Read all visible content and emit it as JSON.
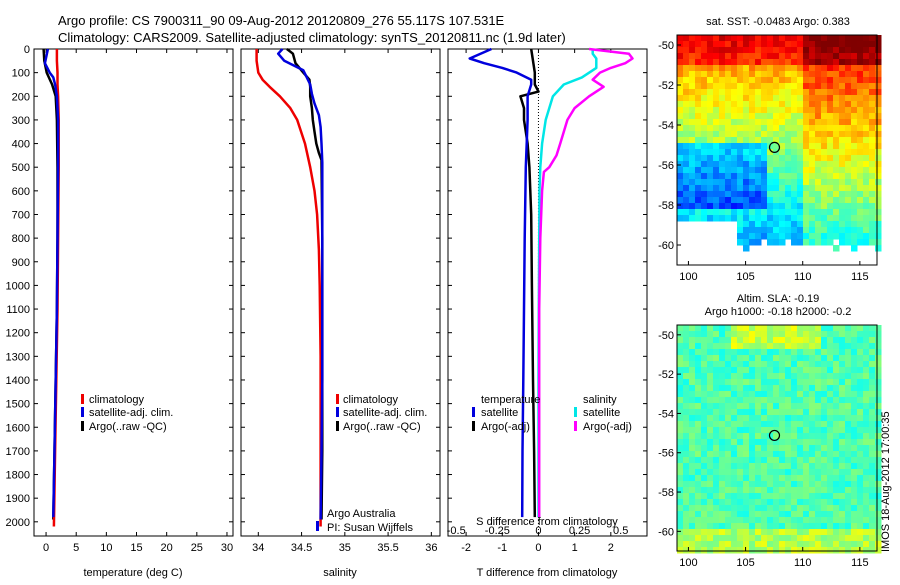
{
  "header": {
    "line1": "Argo profile: CS 7900311_90 09-Aug-2012 20120809_276 55.117S 107.531E",
    "line2": "Climatology: CARS2009. Satellite-adjusted climatology: synTS_20120811.nc (1.9d later)"
  },
  "colors": {
    "climatology": "#ee0000",
    "satellite": "#0000dd",
    "argo": "#000000",
    "satellite_salinity": "#00e6e6",
    "argo_salinity": "#ff00ff"
  },
  "depth_ticks": [
    "0",
    "100",
    "200",
    "300",
    "400",
    "500",
    "600",
    "700",
    "800",
    "900",
    "1000",
    "1100",
    "1200",
    "1300",
    "1400",
    "1500",
    "1600",
    "1700",
    "1800",
    "1900",
    "2000"
  ],
  "chart_data": [
    {
      "id": "temperature",
      "type": "line",
      "xlabel": "temperature (deg C)",
      "ylabel": "",
      "xlim": [
        -2,
        31
      ],
      "ylim": [
        2060,
        0
      ],
      "xticks": [
        "0",
        "5",
        "10",
        "15",
        "20",
        "25",
        "30"
      ],
      "xtick_values": [
        0,
        5,
        10,
        15,
        20,
        25,
        30
      ],
      "legend": [
        "climatology",
        "satellite-adj. clim.",
        "Argo(..raw -QC)"
      ],
      "legend_position": "lower-middle",
      "series": [
        {
          "name": "climatology",
          "depth": [
            0,
            50,
            100,
            150,
            200,
            300,
            500,
            800,
            1100,
            1400,
            1700,
            2020
          ],
          "values": [
            1.8,
            1.8,
            1.9,
            1.9,
            2.0,
            2.1,
            2.1,
            2.0,
            1.9,
            1.7,
            1.5,
            1.3
          ]
        },
        {
          "name": "satellite-adj. clim.",
          "depth": [
            0,
            60,
            100,
            120,
            150,
            200,
            300,
            500,
            800,
            1100,
            1400,
            1700,
            1980
          ],
          "values": [
            0.3,
            -0.2,
            0.6,
            1.2,
            1.5,
            1.8,
            2.0,
            2.0,
            1.9,
            1.8,
            1.6,
            1.4,
            1.2
          ]
        },
        {
          "name": "Argo(..raw -QC)",
          "depth": [
            0,
            50,
            100,
            150,
            200,
            300,
            500,
            800,
            1100,
            1400,
            1700,
            1990
          ],
          "values": [
            -0.4,
            -0.3,
            0.1,
            1.0,
            1.6,
            1.8,
            1.9,
            1.9,
            1.8,
            1.6,
            1.4,
            1.2
          ]
        }
      ]
    },
    {
      "id": "salinity",
      "type": "line",
      "xlabel": "salinity",
      "ylabel": "",
      "xlim": [
        33.8,
        36.1
      ],
      "ylim": [
        2060,
        0
      ],
      "xticks": [
        "34",
        "34.5",
        "35",
        "35.5",
        "36"
      ],
      "xtick_values": [
        34,
        34.5,
        35,
        35.5,
        36
      ],
      "legend": [
        "climatology",
        "satellite-adj. clim.",
        "Argo(..raw -QC)"
      ],
      "legend_position": "lower-right",
      "annotation": [
        "Argo Australia",
        "PI: Susan Wijffels"
      ],
      "series": [
        {
          "name": "climatology",
          "depth": [
            0,
            50,
            100,
            130,
            160,
            200,
            250,
            300,
            400,
            500,
            600,
            700,
            850,
            1000,
            1300,
            1600,
            2020
          ],
          "values": [
            33.98,
            33.98,
            34.0,
            34.05,
            34.13,
            34.25,
            34.37,
            34.45,
            34.54,
            34.6,
            34.65,
            34.68,
            34.7,
            34.71,
            34.72,
            34.72,
            34.72
          ]
        },
        {
          "name": "satellite-adj. clim.",
          "depth": [
            0,
            20,
            50,
            90,
            120,
            150,
            190,
            230,
            280,
            330,
            400,
            480,
            550,
            800,
            1100,
            1400,
            1700,
            1990
          ],
          "values": [
            34.28,
            34.23,
            34.3,
            34.52,
            34.56,
            34.6,
            34.62,
            34.65,
            34.7,
            34.72,
            34.73,
            34.74,
            34.74,
            34.74,
            34.74,
            34.74,
            34.73,
            34.72
          ]
        },
        {
          "name": "Argo(..raw -QC)",
          "depth": [
            0,
            20,
            60,
            100,
            130,
            160,
            200,
            250,
            300,
            350,
            400,
            440,
            470,
            800,
            1100,
            1400,
            1700,
            1990
          ],
          "values": [
            34.33,
            34.4,
            34.43,
            34.52,
            34.59,
            34.6,
            34.6,
            34.62,
            34.63,
            34.65,
            34.67,
            34.7,
            34.73,
            34.74,
            34.74,
            34.74,
            34.74,
            34.73
          ]
        }
      ]
    },
    {
      "id": "difference",
      "type": "line",
      "xlabel": "T difference from climatology",
      "xlabel_top": "S difference from climatology",
      "ylabel": "",
      "xlim": [
        -2.5,
        3.0
      ],
      "ylim": [
        2060,
        0
      ],
      "xticks": [
        "-2",
        "-1",
        "0",
        "1",
        "2"
      ],
      "xtick_values": [
        -2,
        -1,
        0,
        1,
        2
      ],
      "xticks_top": [
        "-0.5",
        "-0.25",
        "0",
        "0.25",
        "0.5"
      ],
      "xtick_values_top": [
        -0.5,
        -0.25,
        0,
        0.25,
        0.5
      ],
      "legend_groups": [
        {
          "heading": "temperature",
          "items": [
            "satellite",
            "Argo(-adj)"
          ]
        },
        {
          "heading": "salinity",
          "items": [
            "satellite",
            "Argo(-adj)"
          ]
        }
      ],
      "legend_position": "lower-middle",
      "series": [
        {
          "name": "temperature satellite",
          "depth": [
            0,
            40,
            60,
            80,
            100,
            130,
            150,
            200,
            300,
            500,
            800,
            1100,
            1400,
            1700,
            1980
          ],
          "values": [
            -1.3,
            -1.9,
            -1.5,
            -1.0,
            -0.6,
            -0.2,
            -0.2,
            -0.3,
            -0.3,
            -0.35,
            -0.38,
            -0.4,
            -0.42,
            -0.44,
            -0.45
          ]
        },
        {
          "name": "temperature Argo(-adj)",
          "depth": [
            0,
            100,
            150,
            180,
            200,
            250,
            300,
            400,
            500,
            700,
            1000,
            1400,
            1700,
            1980
          ],
          "values": [
            -0.2,
            -0.1,
            -0.1,
            0.0,
            -0.5,
            -0.4,
            -0.4,
            -0.3,
            -0.25,
            -0.2,
            -0.18,
            -0.15,
            -0.12,
            -0.1
          ]
        },
        {
          "name": "salinity satellite",
          "depth": [
            0,
            20,
            40,
            80,
            120,
            150,
            200,
            300,
            400,
            500,
            600,
            800,
            1100,
            1400,
            1700,
            1980
          ],
          "values": [
            1.5,
            1.5,
            1.6,
            1.6,
            1.2,
            0.7,
            0.4,
            0.2,
            0.1,
            0.05,
            0.03,
            0.02,
            0.01,
            0.0,
            0.0,
            0.0
          ]
        },
        {
          "name": "salinity Argo(-adj)",
          "depth": [
            0,
            20,
            40,
            60,
            80,
            100,
            130,
            160,
            200,
            250,
            300,
            400,
            450,
            500,
            520,
            600,
            800,
            1100,
            1400,
            1700,
            1980
          ],
          "values": [
            1.4,
            2.5,
            2.6,
            2.4,
            2.0,
            1.7,
            1.5,
            1.8,
            1.4,
            1.0,
            0.8,
            0.6,
            0.5,
            0.3,
            0.15,
            0.1,
            0.05,
            0.02,
            0.02,
            0.02,
            0.02
          ]
        }
      ]
    },
    {
      "id": "sst_map",
      "type": "heatmap",
      "title": "sat. SST: -0.0483 Argo: 0.383",
      "xlim": [
        99,
        116.5
      ],
      "ylim": [
        -61,
        -49.5
      ],
      "xticks": [
        "100",
        "105",
        "110",
        "115"
      ],
      "xtick_values": [
        100,
        105,
        110,
        115
      ],
      "yticks": [
        "-50",
        "-52",
        "-54",
        "-56",
        "-58",
        "-60"
      ],
      "ytick_values": [
        -50,
        -52,
        -54,
        -56,
        -58,
        -60
      ],
      "marker": {
        "lon": 107.53,
        "lat": -55.12
      }
    },
    {
      "id": "sla_map",
      "type": "heatmap",
      "title": "Altim. SLA: -0.19",
      "subtitle": "Argo h1000: -0.18 h2000: -0.2",
      "xlim": [
        99,
        116.5
      ],
      "ylim": [
        -61,
        -49.5
      ],
      "xticks": [
        "100",
        "105",
        "110",
        "115"
      ],
      "xtick_values": [
        100,
        105,
        110,
        115
      ],
      "yticks": [
        "-50",
        "-52",
        "-54",
        "-56",
        "-58",
        "-60"
      ],
      "ytick_values": [
        -50,
        -52,
        -54,
        -56,
        -58,
        -60
      ],
      "marker": {
        "lon": 107.53,
        "lat": -55.12
      }
    }
  ],
  "side_label": "IMOS 18-Aug-2012 17:00:35"
}
